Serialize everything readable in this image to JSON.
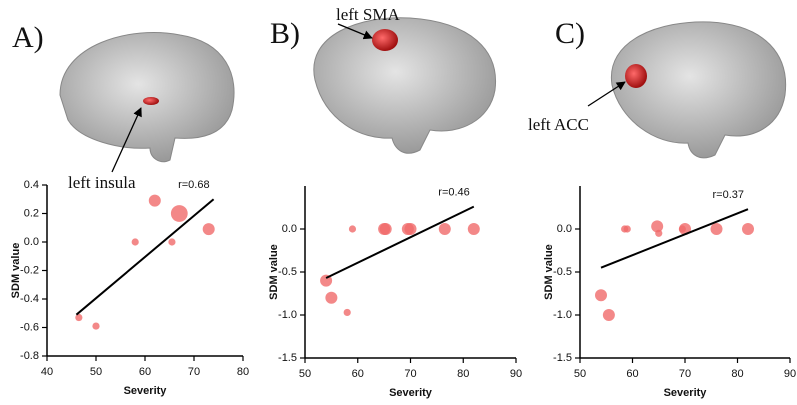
{
  "chart_data": [
    {
      "type": "scatter",
      "panel_label": "A)",
      "region_label": "left insula",
      "annotation": "r=0.68",
      "x_label": "Severity",
      "y_label": "SDM value",
      "color": "#f06a6a",
      "x": [
        46.5,
        50,
        58,
        62,
        65.5,
        67,
        73
      ],
      "y": [
        -0.53,
        -0.59,
        0.0,
        0.29,
        0.0,
        0.2,
        0.09
      ],
      "sizes": [
        1,
        1,
        1,
        2,
        1,
        3,
        2
      ],
      "fit_line": {
        "x": [
          46,
          74
        ],
        "y": [
          -0.51,
          0.3
        ]
      },
      "xlim": [
        40,
        80
      ],
      "xticks": [
        40,
        50,
        60,
        70,
        80
      ],
      "ylim": [
        -0.8,
        0.4
      ],
      "yticks": [
        0.4,
        0.2,
        {
          "value": 0,
          "label": "0.0"
        },
        -0.2,
        -0.4,
        -0.6,
        -0.8
      ]
    },
    {
      "type": "scatter",
      "panel_label": "B)",
      "region_label": "left SMA",
      "annotation": "r=0.46",
      "x_label": "Severity",
      "y_label": "SDM value",
      "color": "#f06a6a",
      "x": [
        54,
        55,
        58,
        59,
        65,
        65.3,
        69.5,
        70,
        76.5,
        82
      ],
      "y": [
        -0.6,
        -0.8,
        -0.97,
        0.0,
        0.0,
        0.0,
        0.0,
        0.0,
        0.0,
        0.0
      ],
      "sizes": [
        2,
        2,
        1,
        1,
        2,
        2,
        2,
        2,
        2,
        2
      ],
      "fit_line": {
        "x": [
          54,
          82
        ],
        "y": [
          -0.57,
          0.26
        ]
      },
      "xlim": [
        50,
        90
      ],
      "xticks": [
        50,
        60,
        70,
        80,
        90
      ],
      "ylim": [
        -1.5,
        0.5
      ],
      "yticks": [
        {
          "value": 0,
          "label": "0.0"
        },
        -0.5,
        {
          "value": -1,
          "label": "-1.0"
        },
        -1.5
      ]
    },
    {
      "type": "scatter",
      "panel_label": "C)",
      "region_label": "left ACC",
      "annotation": "r=0.37",
      "x_label": "Severity",
      "y_label": "SDM value",
      "color": "#f06a6a",
      "x": [
        54,
        55.5,
        58.5,
        59,
        64.7,
        65,
        69.5,
        70,
        76,
        82
      ],
      "y": [
        -0.77,
        -1.0,
        0.0,
        0.0,
        0.03,
        -0.05,
        0.0,
        0.0,
        0.0,
        0.0
      ],
      "sizes": [
        2,
        2,
        1,
        1,
        2,
        1,
        1,
        2,
        2,
        2
      ],
      "fit_line": {
        "x": [
          54,
          82
        ],
        "y": [
          -0.45,
          0.23
        ]
      },
      "xlim": [
        50,
        90
      ],
      "xticks": [
        50,
        60,
        70,
        80,
        90
      ],
      "ylim": [
        -1.5,
        0.5
      ],
      "yticks": [
        {
          "value": 0,
          "label": "0.0"
        },
        -0.5,
        {
          "value": -1,
          "label": "-1.0"
        },
        -1.5
      ]
    }
  ]
}
